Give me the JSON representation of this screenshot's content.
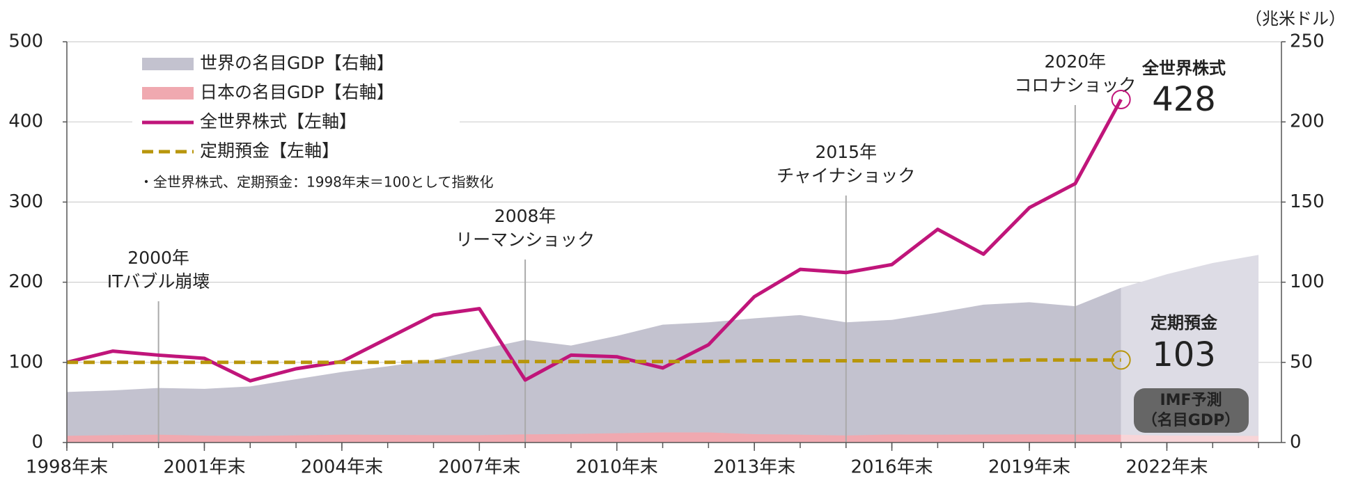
{
  "chart_data": {
    "type": "area-line",
    "unit_label": "（兆米ドル）",
    "note": "・全世界株式、定期預金：1998年末＝100として指数化",
    "x": [
      1998,
      1999,
      2000,
      2001,
      2002,
      2003,
      2004,
      2005,
      2006,
      2007,
      2008,
      2009,
      2010,
      2011,
      2012,
      2013,
      2014,
      2015,
      2016,
      2017,
      2018,
      2019,
      2020,
      2021,
      2022,
      2023,
      2024
    ],
    "xlim": [
      1998,
      2024.5
    ],
    "xticks": [
      {
        "value": 1998,
        "label": "1998年末"
      },
      {
        "value": 2001,
        "label": "2001年末"
      },
      {
        "value": 2004,
        "label": "2004年末"
      },
      {
        "value": 2007,
        "label": "2007年末"
      },
      {
        "value": 2010,
        "label": "2010年末"
      },
      {
        "value": 2013,
        "label": "2013年末"
      },
      {
        "value": 2016,
        "label": "2016年末"
      },
      {
        "value": 2019,
        "label": "2019年末"
      },
      {
        "value": 2022,
        "label": "2022年末"
      }
    ],
    "xminor_ticks": [
      1998,
      1999,
      2000,
      2001,
      2002,
      2003,
      2004,
      2005,
      2006,
      2007,
      2008,
      2009,
      2010,
      2011,
      2012,
      2013,
      2014,
      2015,
      2016,
      2017,
      2018,
      2019,
      2020,
      2021,
      2022,
      2023,
      2024
    ],
    "ylim": [
      0,
      500
    ],
    "yticks": [
      0,
      100,
      200,
      300,
      400,
      500
    ],
    "y2lim": [
      0,
      250
    ],
    "y2ticks": [
      0,
      50,
      100,
      150,
      200,
      250
    ],
    "grid": true,
    "series": [
      {
        "name": "世界の名目GDP【右軸】",
        "kind": "area",
        "axis": "y2",
        "color": "#c3c2cf",
        "forecast_color": "#dddce5",
        "values": [
          31.5,
          32.5,
          34,
          33.5,
          35,
          39.5,
          44,
          47.5,
          51.5,
          58,
          64,
          60.5,
          66.5,
          73.5,
          75,
          77.5,
          79.5,
          75,
          76.5,
          81,
          86,
          87.5,
          85,
          96.5,
          105,
          112,
          117
        ]
      },
      {
        "name": "日本の名目GDP【右軸】",
        "kind": "area",
        "axis": "y2",
        "color": "#f0a9b0",
        "forecast_color": "#f8d5d8",
        "values": [
          4.2,
          4.6,
          4.9,
          4.3,
          4.1,
          4.5,
          4.9,
          4.8,
          4.6,
          4.6,
          5.1,
          5.3,
          5.8,
          6.3,
          6.3,
          5.2,
          4.9,
          4.4,
          5.0,
          4.9,
          5.0,
          5.1,
          5.0,
          4.9,
          4.3,
          4.2,
          4.1
        ]
      },
      {
        "name": "全世界株式【左軸】",
        "kind": "line",
        "color": "#c0157a",
        "values": [
          100,
          114,
          109,
          105,
          77,
          92,
          101,
          130,
          159,
          167,
          78,
          109,
          107,
          93,
          122,
          182,
          216,
          212,
          222,
          266,
          235,
          293,
          323,
          428,
          null,
          null,
          null
        ]
      },
      {
        "name": "定期預金【左軸】",
        "kind": "dash",
        "color": "#b8960c",
        "values": [
          100,
          100,
          100,
          100,
          100,
          100,
          100,
          100,
          101,
          101,
          101,
          101,
          101,
          101,
          101,
          102,
          102,
          102,
          102,
          102,
          102,
          103,
          103,
          103,
          null,
          null,
          null
        ]
      }
    ],
    "end_labels": [
      {
        "series": 2,
        "title": "全世界株式"
      },
      {
        "series": 3,
        "title": "定期預金"
      }
    ],
    "forecast": {
      "from": 2021,
      "label": [
        "IMF予測",
        "（名目GDP）"
      ]
    },
    "annotations": [
      {
        "x": 2000,
        "lines": [
          "2000年",
          "ITバブル崩壊"
        ]
      },
      {
        "x": 2008,
        "lines": [
          "2008年",
          "リーマンショック"
        ]
      },
      {
        "x": 2015,
        "lines": [
          "2015年",
          "チャイナショック"
        ]
      },
      {
        "x": 2020,
        "lines": [
          "2020年",
          "コロナショック"
        ]
      }
    ]
  }
}
